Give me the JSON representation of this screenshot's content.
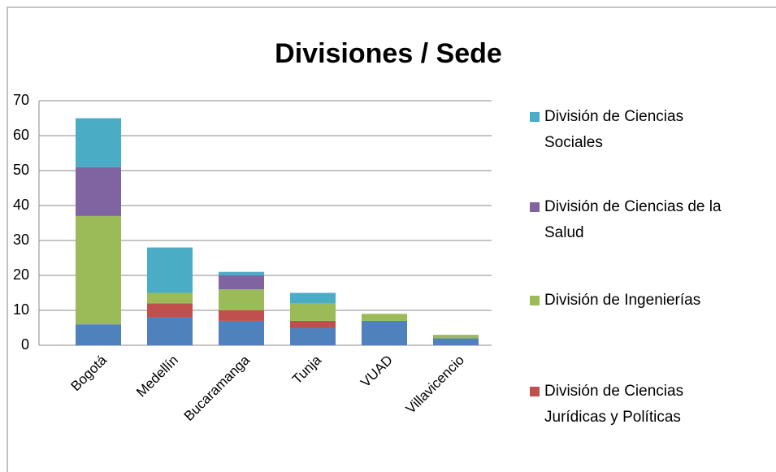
{
  "chart_data": {
    "type": "stacked_bar",
    "title": "Divisiones / Sede",
    "categories": [
      "Bogotá",
      "Medellín",
      "Bucaramanga",
      "Tunja",
      "VUAD",
      "Villavicencio"
    ],
    "series": [
      {
        "name": null,
        "color": "#4f81bd",
        "values": [
          6,
          8,
          7,
          5,
          7,
          2
        ]
      },
      {
        "name": "División de Ciencias Jurídicas y Políticas",
        "color": "#c0504d",
        "values": [
          0,
          4,
          3,
          2,
          0,
          0
        ]
      },
      {
        "name": "División de Ingenierías",
        "color": "#9bbb59",
        "values": [
          31,
          3,
          6,
          5,
          2,
          1
        ]
      },
      {
        "name": "División de Ciencias de la Salud",
        "color": "#8064a2",
        "values": [
          14,
          0,
          4,
          0,
          0,
          0
        ]
      },
      {
        "name": "División de Ciencias Sociales",
        "color": "#4bacc6",
        "values": [
          14,
          13,
          1,
          3,
          0,
          0
        ]
      }
    ],
    "ylim": [
      0,
      70
    ],
    "yticks": [
      0,
      10,
      20,
      30,
      40,
      50,
      60,
      70
    ],
    "grid": true,
    "legend": "right"
  }
}
